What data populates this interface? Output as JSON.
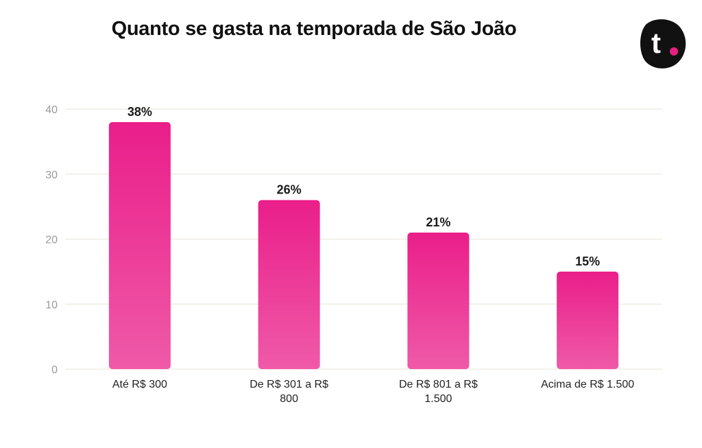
{
  "chart_data": {
    "type": "bar",
    "title": "Quanto se gasta na temporada de São João",
    "categories": [
      "Até R$ 300",
      "De R$ 301 a R$ 800",
      "De R$ 801 a R$ 1.500",
      "Acima de R$ 1.500"
    ],
    "category_lines": [
      [
        "Até R$ 300"
      ],
      [
        "De R$ 301 a R$",
        "800"
      ],
      [
        "De R$ 801 a R$",
        "1.500"
      ],
      [
        "Acima de R$ 1.500"
      ]
    ],
    "values": [
      38,
      26,
      21,
      15
    ],
    "data_labels": [
      "38%",
      "26%",
      "21%",
      "15%"
    ],
    "yticks": [
      0,
      10,
      20,
      30,
      40
    ],
    "ylim": [
      0,
      40
    ],
    "xlabel": "",
    "ylabel": "",
    "grid": true,
    "legend": "none",
    "colors": {
      "bar_top": "#ea1e8a",
      "bar_bottom": "#ef5aa8",
      "grid": "#ece9dc",
      "tick_text": "#9a9a9a"
    }
  },
  "logo": {
    "letter": "t",
    "colors": {
      "badge": "#111111",
      "letter": "#ffffff",
      "dot": "#e8217f"
    }
  }
}
